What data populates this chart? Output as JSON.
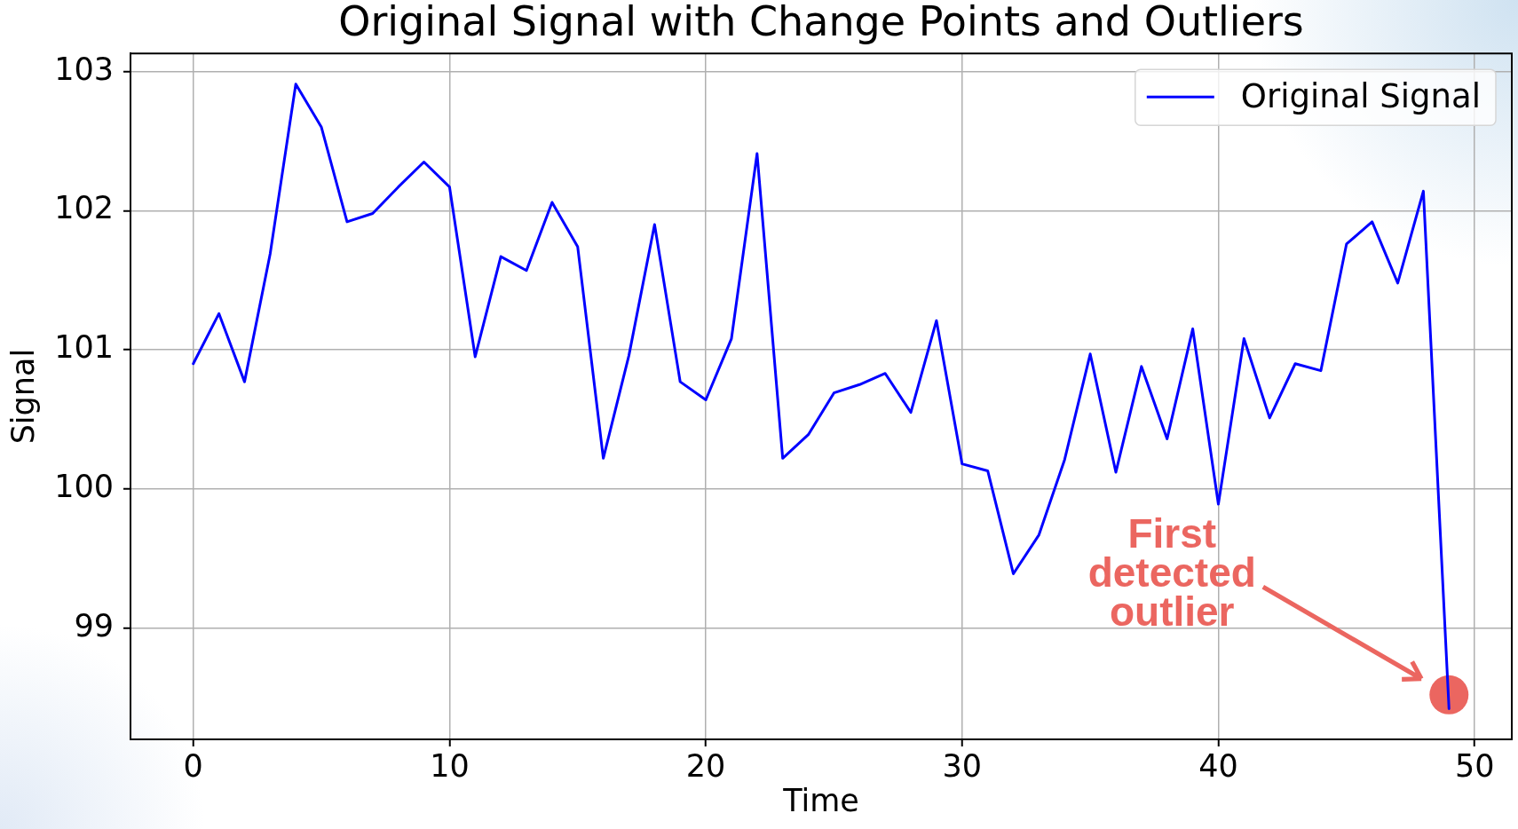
{
  "chart_data": {
    "type": "line",
    "title": "Original Signal with Change Points and Outliers",
    "xlabel": "Time",
    "ylabel": "Signal",
    "x": [
      0,
      1,
      2,
      3,
      4,
      5,
      6,
      7,
      8,
      9,
      10,
      11,
      12,
      13,
      14,
      15,
      16,
      17,
      18,
      19,
      20,
      21,
      22,
      23,
      24,
      25,
      26,
      27,
      28,
      29,
      30,
      31,
      32,
      33,
      34,
      35,
      36,
      37,
      38,
      39,
      40,
      41,
      42,
      43,
      44,
      45,
      46,
      47,
      48,
      49
    ],
    "series": [
      {
        "name": "Original Signal",
        "color": "#0000ff",
        "values": [
          100.9,
          101.26,
          100.77,
          101.69,
          102.91,
          102.6,
          101.92,
          101.98,
          102.17,
          102.35,
          102.17,
          100.95,
          101.67,
          101.57,
          102.06,
          101.74,
          100.22,
          100.96,
          101.9,
          100.77,
          100.64,
          101.08,
          102.41,
          100.22,
          100.39,
          100.69,
          100.75,
          100.83,
          100.55,
          101.21,
          100.18,
          100.13,
          99.39,
          99.67,
          100.21,
          100.97,
          100.12,
          100.88,
          100.36,
          101.15,
          99.89,
          101.08,
          100.51,
          100.9,
          100.85,
          101.76,
          101.92,
          101.48,
          102.14,
          98.42
        ]
      },
      {
        "type": "scatter",
        "color": "#eb6660",
        "marker": "circle",
        "x": [
          49
        ],
        "values": [
          98.52
        ]
      }
    ],
    "annotations": [
      "First detected outlier"
    ],
    "xlim": [
      -2.45,
      51.45
    ],
    "ylim": [
      98.2,
      103.13
    ],
    "xticks": [
      0,
      10,
      20,
      30,
      40,
      50
    ],
    "yticks": [
      99,
      100,
      101,
      102,
      103
    ],
    "grid": true,
    "legend": "top right"
  }
}
